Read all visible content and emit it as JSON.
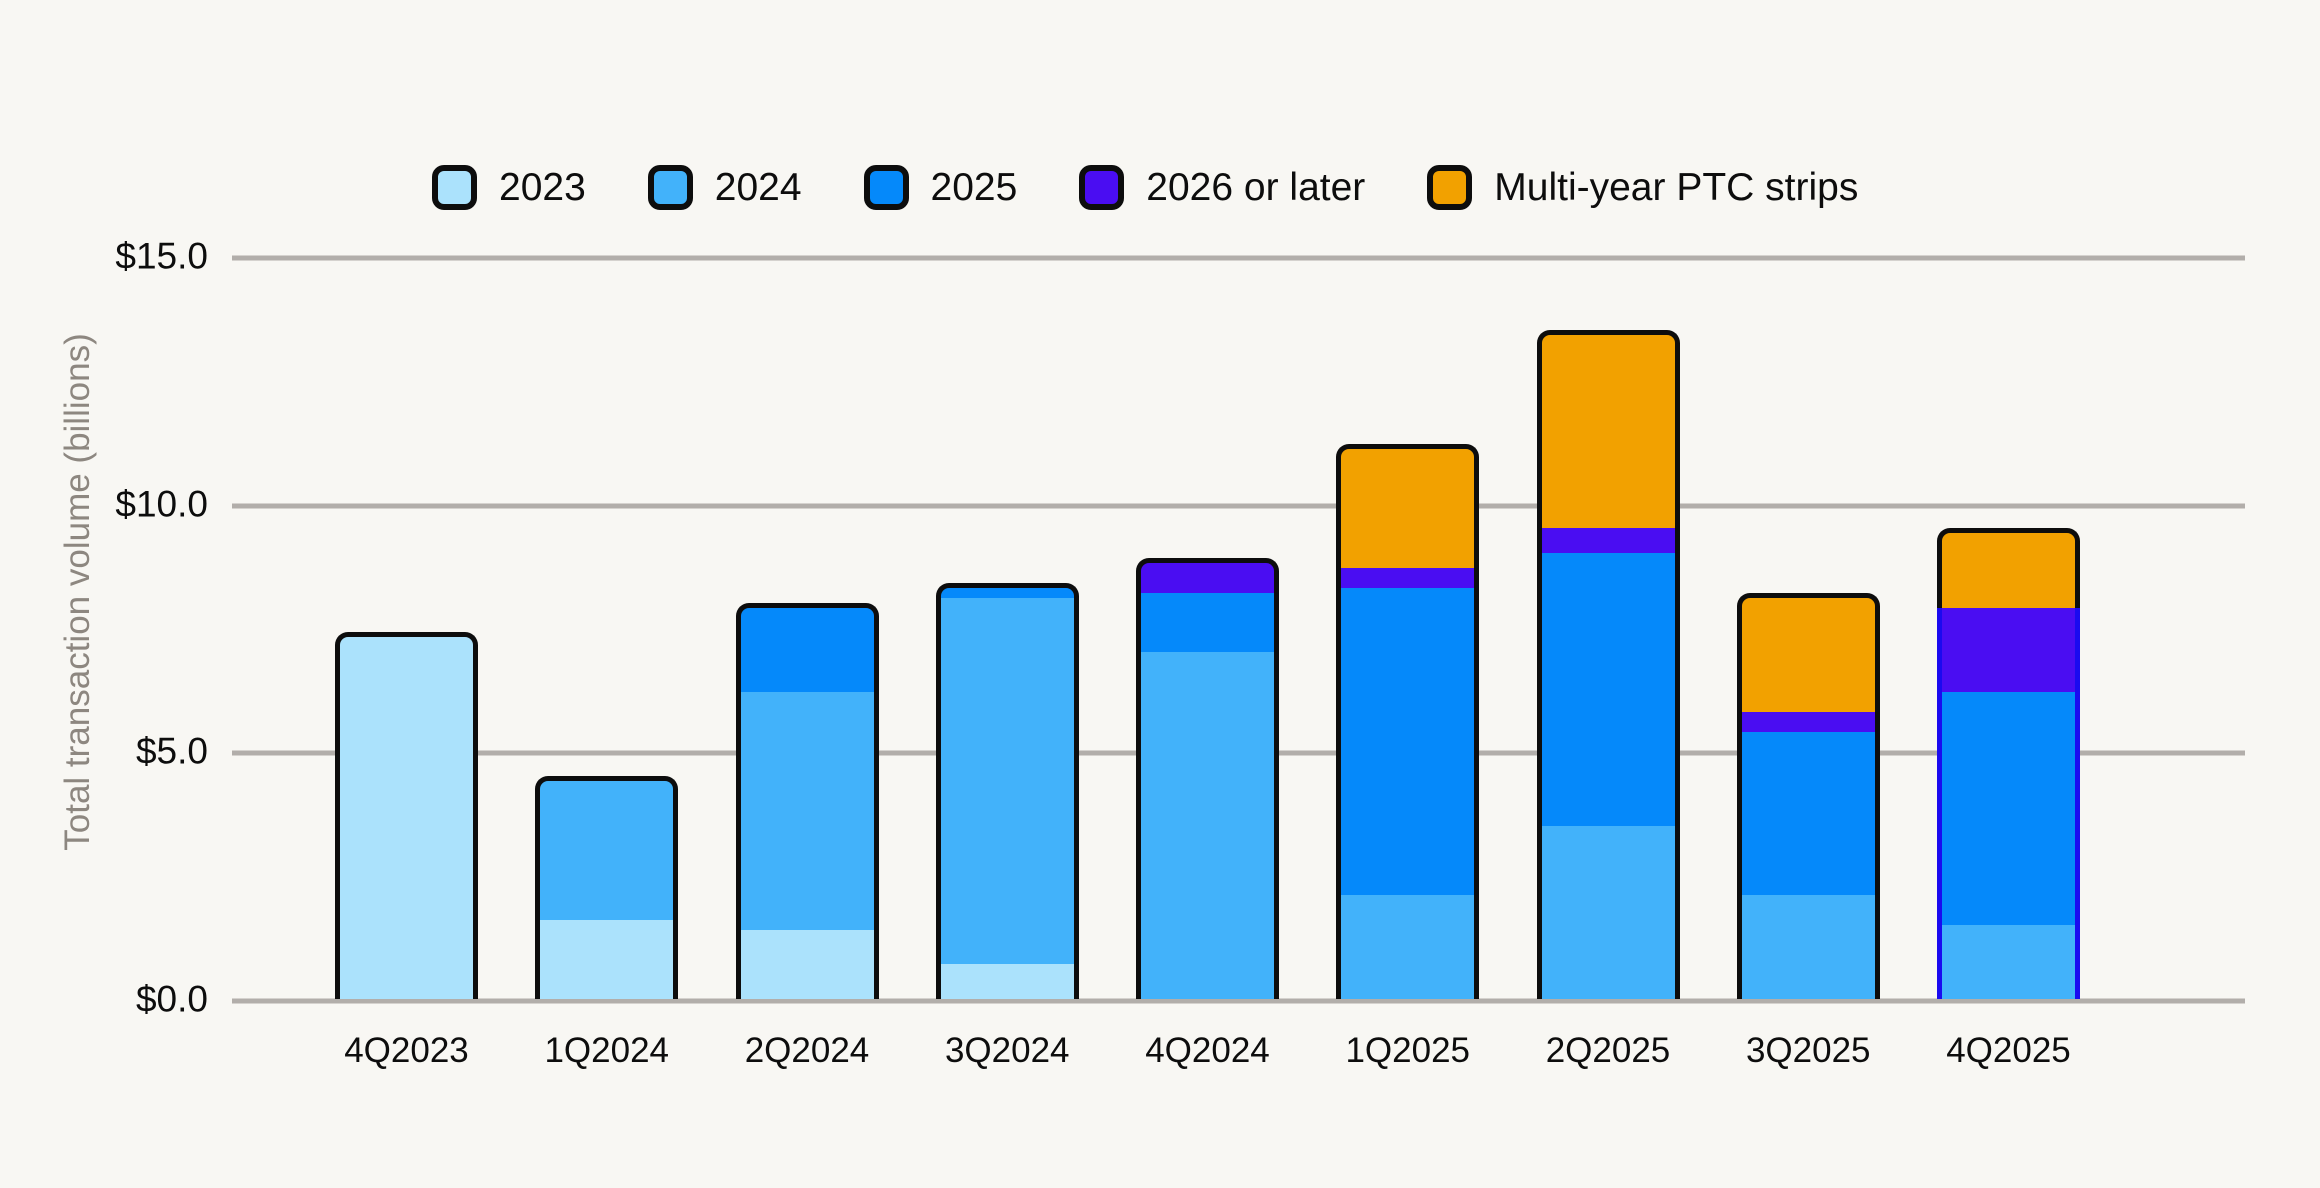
{
  "colors": {
    "background": "#F8F7F3",
    "gridline": "#B2AEAA",
    "axis_title_text": "#8D8780",
    "tick_text": "#0D0D0D",
    "bar_outline": "#0D0D0D",
    "highlight_bar_outline": "#1A0AF0"
  },
  "y_axis": {
    "title": "Total transaction volume (billions)",
    "ticks": [
      "$15.0",
      "$10.0",
      "$5.0",
      "$0.0"
    ]
  },
  "chart_data": {
    "type": "bar",
    "stacked": true,
    "title": "",
    "xlabel": "",
    "ylabel": "Total transaction volume (billions)",
    "ylim": [
      0,
      15
    ],
    "ytick_values": [
      0,
      5,
      10,
      15
    ],
    "ytick_labels": [
      "$0.0",
      "$5.0",
      "$10.0",
      "$15.0"
    ],
    "grid": "horizontal",
    "legend_position": "top",
    "categories": [
      "4Q2023",
      "1Q2024",
      "2Q2024",
      "3Q2024",
      "4Q2024",
      "1Q2025",
      "2Q2025",
      "3Q2025",
      "4Q2025"
    ],
    "series": [
      {
        "name": "2023",
        "color": "#ABE2FC",
        "values": [
          7.4,
          1.6,
          1.4,
          0.7,
          0,
          0,
          0,
          0,
          0
        ]
      },
      {
        "name": "2024",
        "color": "#42B2FA",
        "values": [
          0,
          2.9,
          4.8,
          7.4,
          7.0,
          2.1,
          3.5,
          2.1,
          1.5
        ]
      },
      {
        "name": "2025",
        "color": "#0589FA",
        "values": [
          0,
          0,
          1.8,
          0.3,
          1.2,
          6.2,
          5.5,
          3.3,
          4.7
        ]
      },
      {
        "name": "2026 or later",
        "color": "#4A0DF2",
        "values": [
          0,
          0,
          0,
          0,
          0.7,
          0.4,
          0.5,
          0.4,
          1.7
        ]
      },
      {
        "name": "Multi-year PTC strips",
        "color": "#F2A100",
        "values": [
          0,
          0,
          0,
          0,
          0,
          2.5,
          4.0,
          2.4,
          1.6
        ]
      }
    ],
    "totals": [
      7.4,
      4.5,
      8.0,
      8.4,
      8.9,
      11.2,
      13.5,
      8.2,
      9.5
    ],
    "highlight_category": "4Q2025",
    "highlight_note": "4Q2025 bar outlined in blue except its Multi-year PTC strips segment which keeps the black outline"
  }
}
